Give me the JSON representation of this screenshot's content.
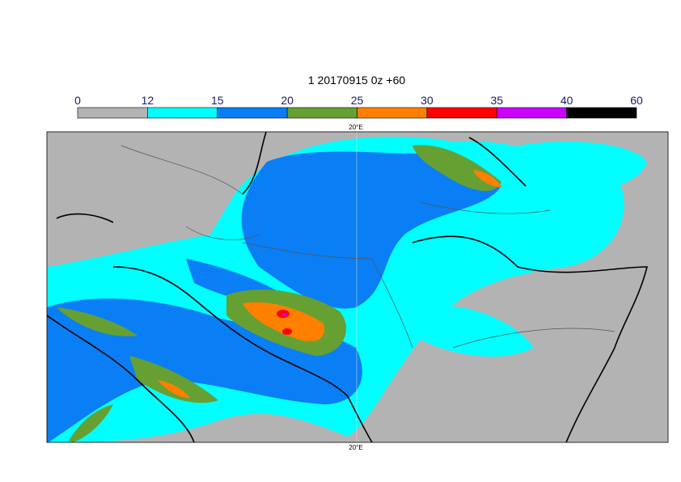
{
  "title": "1 20170915 0z +60",
  "colorbar": {
    "levels": [
      0,
      12,
      15,
      20,
      25,
      30,
      35,
      40,
      60
    ],
    "colors": [
      "#b3b3b3",
      "#00ffff",
      "#0a7ef5",
      "#66a033",
      "#ff8000",
      "#ff0000",
      "#cc00ff",
      "#000000"
    ]
  },
  "lon_labels": {
    "top": "20°E",
    "bottom": "20°E"
  }
}
